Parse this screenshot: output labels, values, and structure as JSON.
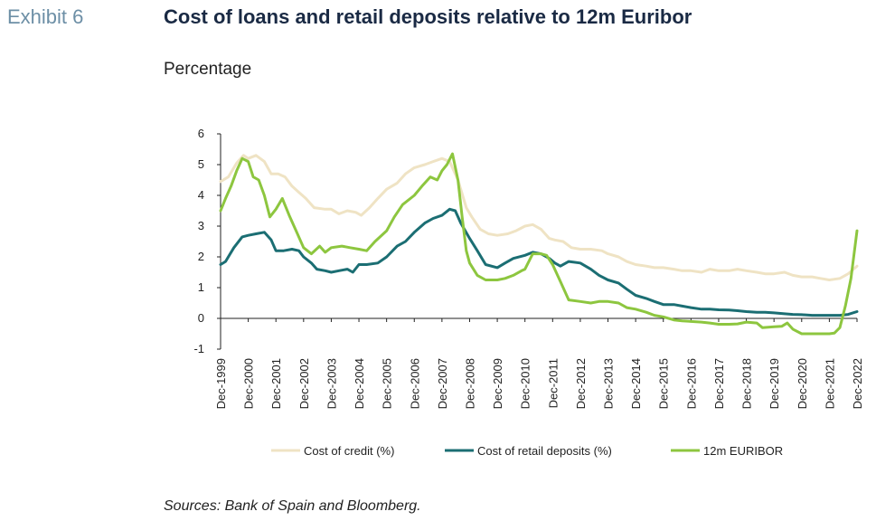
{
  "header": {
    "exhibit": "Exhibit 6",
    "title": "Cost of loans and retail deposits relative to 12m Euribor",
    "subtitle": "Percentage"
  },
  "footer": {
    "source": "Sources: Bank of Spain and Bloomberg."
  },
  "chart_data": {
    "type": "line",
    "title": "Cost of loans and retail deposits relative to 12m Euribor",
    "ylabel": "Percentage",
    "xlabel": "",
    "ylim": [
      -1,
      6
    ],
    "yticks": [
      -1,
      0,
      1,
      2,
      3,
      4,
      5,
      6
    ],
    "xlim": [
      1999.92,
      2022.92
    ],
    "xtick_labels": [
      "Dec-1999",
      "Dec-2000",
      "Dec-2001",
      "Dec-2002",
      "Dec-2003",
      "Dec-2004",
      "Dec-2005",
      "Dec-2006",
      "Dec-2007",
      "Dec-2008",
      "Dec-2009",
      "Dec-2010",
      "Dec-2011",
      "Dec-2012",
      "Dec-2013",
      "Dec-2014",
      "Dec-2015",
      "Dec-2016",
      "Dec-2017",
      "Dec-2018",
      "Dec-2019",
      "Dec-2020",
      "Dec-2021",
      "Dec-2022"
    ],
    "legend_position": "bottom",
    "grid": false,
    "series": [
      {
        "name": "Cost of credit (%)",
        "color": "#efe3c4",
        "points": [
          [
            1999.92,
            4.45
          ],
          [
            2000.2,
            4.6
          ],
          [
            2000.5,
            5.05
          ],
          [
            2000.75,
            5.3
          ],
          [
            2000.92,
            5.2
          ],
          [
            2001.2,
            5.3
          ],
          [
            2001.5,
            5.1
          ],
          [
            2001.75,
            4.7
          ],
          [
            2002.0,
            4.7
          ],
          [
            2002.25,
            4.6
          ],
          [
            2002.5,
            4.3
          ],
          [
            2002.75,
            4.1
          ],
          [
            2003.0,
            3.9
          ],
          [
            2003.3,
            3.6
          ],
          [
            2003.7,
            3.55
          ],
          [
            2003.92,
            3.55
          ],
          [
            2004.2,
            3.4
          ],
          [
            2004.5,
            3.5
          ],
          [
            2004.8,
            3.45
          ],
          [
            2005.0,
            3.35
          ],
          [
            2005.3,
            3.6
          ],
          [
            2005.6,
            3.9
          ],
          [
            2005.92,
            4.2
          ],
          [
            2006.3,
            4.4
          ],
          [
            2006.6,
            4.7
          ],
          [
            2006.92,
            4.9
          ],
          [
            2007.3,
            5.0
          ],
          [
            2007.6,
            5.1
          ],
          [
            2007.92,
            5.2
          ],
          [
            2008.2,
            5.1
          ],
          [
            2008.5,
            4.5
          ],
          [
            2008.8,
            3.6
          ],
          [
            2009.0,
            3.3
          ],
          [
            2009.3,
            2.9
          ],
          [
            2009.6,
            2.75
          ],
          [
            2009.92,
            2.7
          ],
          [
            2010.3,
            2.75
          ],
          [
            2010.6,
            2.85
          ],
          [
            2010.92,
            3.0
          ],
          [
            2011.2,
            3.05
          ],
          [
            2011.5,
            2.9
          ],
          [
            2011.8,
            2.6
          ],
          [
            2012.0,
            2.55
          ],
          [
            2012.3,
            2.5
          ],
          [
            2012.6,
            2.3
          ],
          [
            2012.92,
            2.25
          ],
          [
            2013.3,
            2.25
          ],
          [
            2013.7,
            2.2
          ],
          [
            2013.92,
            2.1
          ],
          [
            2014.3,
            2.0
          ],
          [
            2014.6,
            1.85
          ],
          [
            2014.92,
            1.75
          ],
          [
            2015.3,
            1.7
          ],
          [
            2015.6,
            1.65
          ],
          [
            2015.92,
            1.65
          ],
          [
            2016.3,
            1.6
          ],
          [
            2016.6,
            1.55
          ],
          [
            2016.92,
            1.55
          ],
          [
            2017.3,
            1.5
          ],
          [
            2017.6,
            1.6
          ],
          [
            2017.92,
            1.55
          ],
          [
            2018.3,
            1.55
          ],
          [
            2018.6,
            1.6
          ],
          [
            2018.92,
            1.55
          ],
          [
            2019.3,
            1.5
          ],
          [
            2019.6,
            1.45
          ],
          [
            2019.92,
            1.45
          ],
          [
            2020.3,
            1.5
          ],
          [
            2020.6,
            1.4
          ],
          [
            2020.92,
            1.35
          ],
          [
            2021.3,
            1.35
          ],
          [
            2021.6,
            1.3
          ],
          [
            2021.92,
            1.25
          ],
          [
            2022.3,
            1.3
          ],
          [
            2022.6,
            1.45
          ],
          [
            2022.92,
            1.7
          ]
        ]
      },
      {
        "name": "Cost of retail deposits (%)",
        "color": "#1b6e73",
        "points": [
          [
            1999.92,
            1.75
          ],
          [
            2000.1,
            1.85
          ],
          [
            2000.4,
            2.3
          ],
          [
            2000.7,
            2.65
          ],
          [
            2000.92,
            2.7
          ],
          [
            2001.2,
            2.75
          ],
          [
            2001.5,
            2.8
          ],
          [
            2001.75,
            2.55
          ],
          [
            2001.92,
            2.2
          ],
          [
            2002.2,
            2.2
          ],
          [
            2002.5,
            2.25
          ],
          [
            2002.75,
            2.2
          ],
          [
            2002.92,
            2.0
          ],
          [
            2003.2,
            1.8
          ],
          [
            2003.4,
            1.6
          ],
          [
            2003.7,
            1.55
          ],
          [
            2003.92,
            1.5
          ],
          [
            2004.2,
            1.55
          ],
          [
            2004.5,
            1.6
          ],
          [
            2004.7,
            1.5
          ],
          [
            2004.92,
            1.75
          ],
          [
            2005.2,
            1.75
          ],
          [
            2005.6,
            1.8
          ],
          [
            2005.92,
            2.0
          ],
          [
            2006.3,
            2.35
          ],
          [
            2006.6,
            2.5
          ],
          [
            2006.92,
            2.8
          ],
          [
            2007.3,
            3.1
          ],
          [
            2007.6,
            3.25
          ],
          [
            2007.92,
            3.35
          ],
          [
            2008.2,
            3.55
          ],
          [
            2008.4,
            3.5
          ],
          [
            2008.6,
            3.1
          ],
          [
            2008.92,
            2.6
          ],
          [
            2009.2,
            2.2
          ],
          [
            2009.5,
            1.75
          ],
          [
            2009.92,
            1.65
          ],
          [
            2010.2,
            1.8
          ],
          [
            2010.5,
            1.95
          ],
          [
            2010.92,
            2.05
          ],
          [
            2011.2,
            2.15
          ],
          [
            2011.5,
            2.1
          ],
          [
            2011.8,
            1.95
          ],
          [
            2012.0,
            1.8
          ],
          [
            2012.2,
            1.7
          ],
          [
            2012.5,
            1.85
          ],
          [
            2012.92,
            1.8
          ],
          [
            2013.3,
            1.6
          ],
          [
            2013.6,
            1.4
          ],
          [
            2013.92,
            1.25
          ],
          [
            2014.3,
            1.15
          ],
          [
            2014.6,
            0.95
          ],
          [
            2014.92,
            0.75
          ],
          [
            2015.3,
            0.65
          ],
          [
            2015.6,
            0.55
          ],
          [
            2015.92,
            0.45
          ],
          [
            2016.3,
            0.45
          ],
          [
            2016.6,
            0.4
          ],
          [
            2016.92,
            0.35
          ],
          [
            2017.3,
            0.3
          ],
          [
            2017.6,
            0.3
          ],
          [
            2017.92,
            0.28
          ],
          [
            2018.3,
            0.27
          ],
          [
            2018.6,
            0.25
          ],
          [
            2018.92,
            0.22
          ],
          [
            2019.3,
            0.2
          ],
          [
            2019.6,
            0.2
          ],
          [
            2019.92,
            0.18
          ],
          [
            2020.3,
            0.15
          ],
          [
            2020.6,
            0.13
          ],
          [
            2020.92,
            0.12
          ],
          [
            2021.3,
            0.1
          ],
          [
            2021.6,
            0.1
          ],
          [
            2021.92,
            0.1
          ],
          [
            2022.3,
            0.1
          ],
          [
            2022.6,
            0.13
          ],
          [
            2022.92,
            0.22
          ]
        ]
      },
      {
        "name": "12m EURIBOR",
        "color": "#8dc63f",
        "points": [
          [
            1999.92,
            3.5
          ],
          [
            2000.1,
            3.9
          ],
          [
            2000.3,
            4.3
          ],
          [
            2000.5,
            4.8
          ],
          [
            2000.7,
            5.2
          ],
          [
            2000.92,
            5.1
          ],
          [
            2001.1,
            4.6
          ],
          [
            2001.3,
            4.5
          ],
          [
            2001.5,
            4.0
          ],
          [
            2001.7,
            3.3
          ],
          [
            2001.92,
            3.55
          ],
          [
            2002.15,
            3.9
          ],
          [
            2002.4,
            3.35
          ],
          [
            2002.6,
            2.95
          ],
          [
            2002.92,
            2.3
          ],
          [
            2003.2,
            2.1
          ],
          [
            2003.5,
            2.35
          ],
          [
            2003.7,
            2.15
          ],
          [
            2003.92,
            2.3
          ],
          [
            2004.3,
            2.35
          ],
          [
            2004.6,
            2.3
          ],
          [
            2004.92,
            2.25
          ],
          [
            2005.2,
            2.2
          ],
          [
            2005.5,
            2.5
          ],
          [
            2005.92,
            2.85
          ],
          [
            2006.2,
            3.3
          ],
          [
            2006.5,
            3.7
          ],
          [
            2006.92,
            4.0
          ],
          [
            2007.2,
            4.3
          ],
          [
            2007.5,
            4.6
          ],
          [
            2007.75,
            4.5
          ],
          [
            2007.92,
            4.8
          ],
          [
            2008.1,
            5.0
          ],
          [
            2008.3,
            5.35
          ],
          [
            2008.5,
            4.5
          ],
          [
            2008.65,
            3.3
          ],
          [
            2008.8,
            2.2
          ],
          [
            2008.92,
            1.8
          ],
          [
            2009.2,
            1.4
          ],
          [
            2009.5,
            1.25
          ],
          [
            2009.92,
            1.25
          ],
          [
            2010.2,
            1.3
          ],
          [
            2010.5,
            1.4
          ],
          [
            2010.8,
            1.55
          ],
          [
            2010.92,
            1.6
          ],
          [
            2011.2,
            2.1
          ],
          [
            2011.5,
            2.1
          ],
          [
            2011.7,
            2.05
          ],
          [
            2011.92,
            1.75
          ],
          [
            2012.2,
            1.2
          ],
          [
            2012.5,
            0.6
          ],
          [
            2012.92,
            0.55
          ],
          [
            2013.3,
            0.5
          ],
          [
            2013.6,
            0.55
          ],
          [
            2013.92,
            0.55
          ],
          [
            2014.3,
            0.5
          ],
          [
            2014.6,
            0.35
          ],
          [
            2014.92,
            0.3
          ],
          [
            2015.3,
            0.2
          ],
          [
            2015.6,
            0.1
          ],
          [
            2015.92,
            0.05
          ],
          [
            2016.3,
            -0.05
          ],
          [
            2016.6,
            -0.08
          ],
          [
            2016.92,
            -0.1
          ],
          [
            2017.3,
            -0.12
          ],
          [
            2017.6,
            -0.15
          ],
          [
            2017.92,
            -0.19
          ],
          [
            2018.3,
            -0.19
          ],
          [
            2018.6,
            -0.18
          ],
          [
            2018.92,
            -0.12
          ],
          [
            2019.3,
            -0.15
          ],
          [
            2019.5,
            -0.3
          ],
          [
            2019.92,
            -0.27
          ],
          [
            2020.2,
            -0.26
          ],
          [
            2020.4,
            -0.15
          ],
          [
            2020.6,
            -0.35
          ],
          [
            2020.92,
            -0.5
          ],
          [
            2021.3,
            -0.5
          ],
          [
            2021.6,
            -0.5
          ],
          [
            2021.92,
            -0.5
          ],
          [
            2022.1,
            -0.48
          ],
          [
            2022.3,
            -0.3
          ],
          [
            2022.5,
            0.4
          ],
          [
            2022.7,
            1.3
          ],
          [
            2022.92,
            2.85
          ]
        ]
      }
    ]
  }
}
